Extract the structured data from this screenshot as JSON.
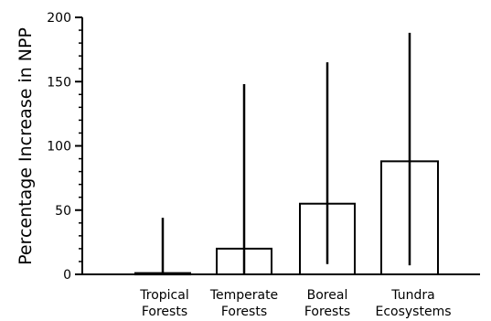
{
  "chart_data": {
    "type": "bar",
    "title": "",
    "xlabel": "",
    "ylabel": "Percentage Increase in NPP",
    "ylim": [
      0,
      200
    ],
    "yticks": [
      0,
      50,
      100,
      150,
      200
    ],
    "grid": false,
    "categories": [
      [
        "Tropical",
        "Forests"
      ],
      [
        "Temperate",
        "Forests"
      ],
      [
        "Boreal",
        "Forests"
      ],
      [
        "Tundra",
        "Ecosystems"
      ]
    ],
    "values": [
      1,
      20,
      55,
      88
    ],
    "range_low": [
      0,
      0,
      8,
      7
    ],
    "range_high": [
      44,
      148,
      165,
      188
    ],
    "colors": {
      "bar_fill": "#ffffff",
      "bar_stroke": "#000000",
      "axis": "#000000",
      "range_line": "#000000"
    }
  }
}
